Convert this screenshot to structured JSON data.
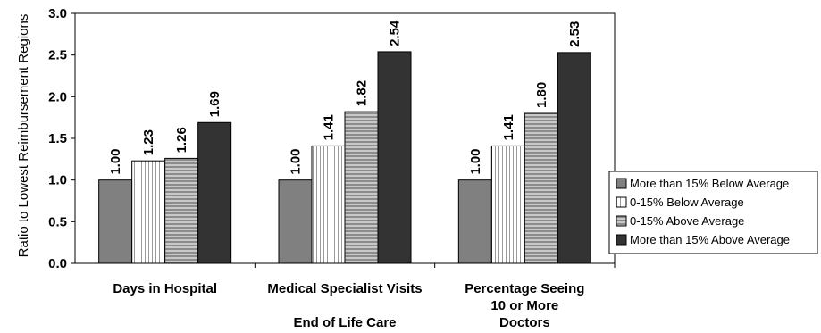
{
  "chart_data": {
    "type": "bar",
    "title": "",
    "xlabel": "End of Life Care",
    "ylabel": "Ratio to Lowest Reimbursement Regions",
    "ylim": [
      0,
      3.0
    ],
    "yticks": [
      "0.0",
      "0.5",
      "1.0",
      "1.5",
      "2.0",
      "2.5",
      "3.0"
    ],
    "categories": [
      [
        "Days in Hospital"
      ],
      [
        "Medical Specialist Visits"
      ],
      [
        "Percentage Seeing",
        "10 or More",
        "Doctors"
      ]
    ],
    "series": [
      {
        "name": "More than 15% Below Average",
        "values": [
          1.0,
          1.0,
          1.0
        ],
        "labels": [
          "1.00",
          "1.00",
          "1.00"
        ]
      },
      {
        "name": "0-15% Below Average",
        "values": [
          1.23,
          1.41,
          1.41
        ],
        "labels": [
          "1.23",
          "1.41",
          "1.41"
        ]
      },
      {
        "name": "0-15% Above Average",
        "values": [
          1.26,
          1.82,
          1.8
        ],
        "labels": [
          "1.26",
          "1.82",
          "1.80"
        ]
      },
      {
        "name": "More than 15% Above Average",
        "values": [
          1.69,
          2.54,
          2.53
        ],
        "labels": [
          "1.69",
          "2.54",
          "2.53"
        ]
      }
    ],
    "legend_position": "right",
    "grid": false
  }
}
